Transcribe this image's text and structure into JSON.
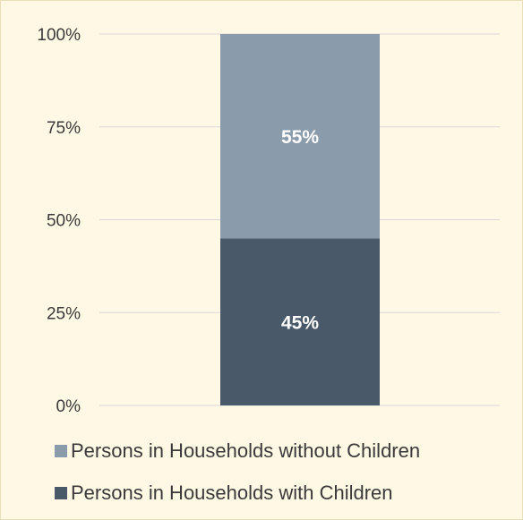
{
  "chart_data": {
    "type": "bar",
    "stacked": true,
    "categories": [
      ""
    ],
    "series": [
      {
        "name": "Persons in Households with Children",
        "values": [
          45
        ],
        "label": "45%",
        "color": "#4a5969"
      },
      {
        "name": "Persons in Households without Children",
        "values": [
          55
        ],
        "label": "55%",
        "color": "#8a9bab"
      }
    ],
    "ylim": [
      0,
      100
    ],
    "yticks": [
      0,
      25,
      50,
      75,
      100
    ],
    "ytick_labels": [
      "0%",
      "25%",
      "50%",
      "75%",
      "100%"
    ],
    "grid": true,
    "legend_position": "bottom",
    "legend": [
      {
        "label": "Persons in Households without Children",
        "color": "#8a9bab"
      },
      {
        "label": "Persons in Households with Children",
        "color": "#4a5969"
      }
    ],
    "colors": {
      "background": "#fef8e5",
      "gridline": "#d9d9d9",
      "label_text": "#ffffff"
    }
  }
}
